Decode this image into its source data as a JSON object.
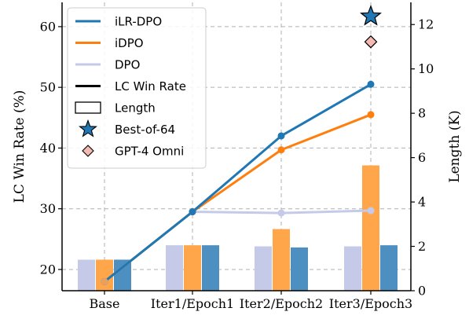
{
  "chart_data": {
    "type": "bar",
    "categories": [
      "Base",
      "Iter1/Epoch1",
      "Iter2/Epoch2",
      "Iter3/Epoch3"
    ],
    "ylabel": "LC Win Rate (%)",
    "ylabel_right": "Length (K)",
    "ylim": [
      16.5,
      64
    ],
    "ylim_right": [
      0,
      13
    ],
    "yticks": [
      20,
      30,
      40,
      50,
      60
    ],
    "yticks_right": [
      0,
      2,
      4,
      6,
      8,
      10,
      12
    ],
    "grid": true,
    "legend_position": "top-left",
    "legend": [
      {
        "label": "iLR-DPO",
        "kind": "line",
        "color": "#1f77b4"
      },
      {
        "label": "iDPO",
        "kind": "line",
        "color": "#ff7f0e"
      },
      {
        "label": "DPO",
        "kind": "line",
        "color": "#c5cae9"
      },
      {
        "label": "LC Win Rate",
        "kind": "line",
        "color": "#000000"
      },
      {
        "label": "Length",
        "kind": "bar",
        "color": "#ffffff"
      },
      {
        "label": "Best-of-64",
        "kind": "star",
        "color": "#1f77b4"
      },
      {
        "label": "GPT-4 Omni",
        "kind": "diamond",
        "color": "#f4b9b2"
      }
    ],
    "series": [
      {
        "name": "DPO",
        "color": "#c5cae9",
        "lc_win_rate": [
          18.0,
          29.5,
          29.3,
          29.7
        ],
        "length": [
          1.4,
          2.05,
          2.0,
          2.0
        ]
      },
      {
        "name": "iDPO",
        "color": "#ff7f0e",
        "lc_win_rate": [
          18.0,
          29.5,
          39.7,
          45.5
        ],
        "length": [
          1.4,
          2.05,
          2.78,
          5.65
        ]
      },
      {
        "name": "iLR-DPO",
        "color": "#1f77b4",
        "lc_win_rate": [
          18.0,
          29.5,
          42.0,
          50.5
        ],
        "length": [
          1.4,
          2.05,
          1.95,
          2.05
        ]
      }
    ],
    "markers": [
      {
        "name": "Best-of-64",
        "category": "Iter3/Epoch3",
        "lc_win_rate": 61.7,
        "color": "#1f77b4",
        "shape": "star"
      },
      {
        "name": "GPT-4 Omni",
        "category": "Iter3/Epoch3",
        "lc_win_rate": 57.5,
        "color": "#f4b9b2",
        "shape": "diamond"
      }
    ]
  }
}
